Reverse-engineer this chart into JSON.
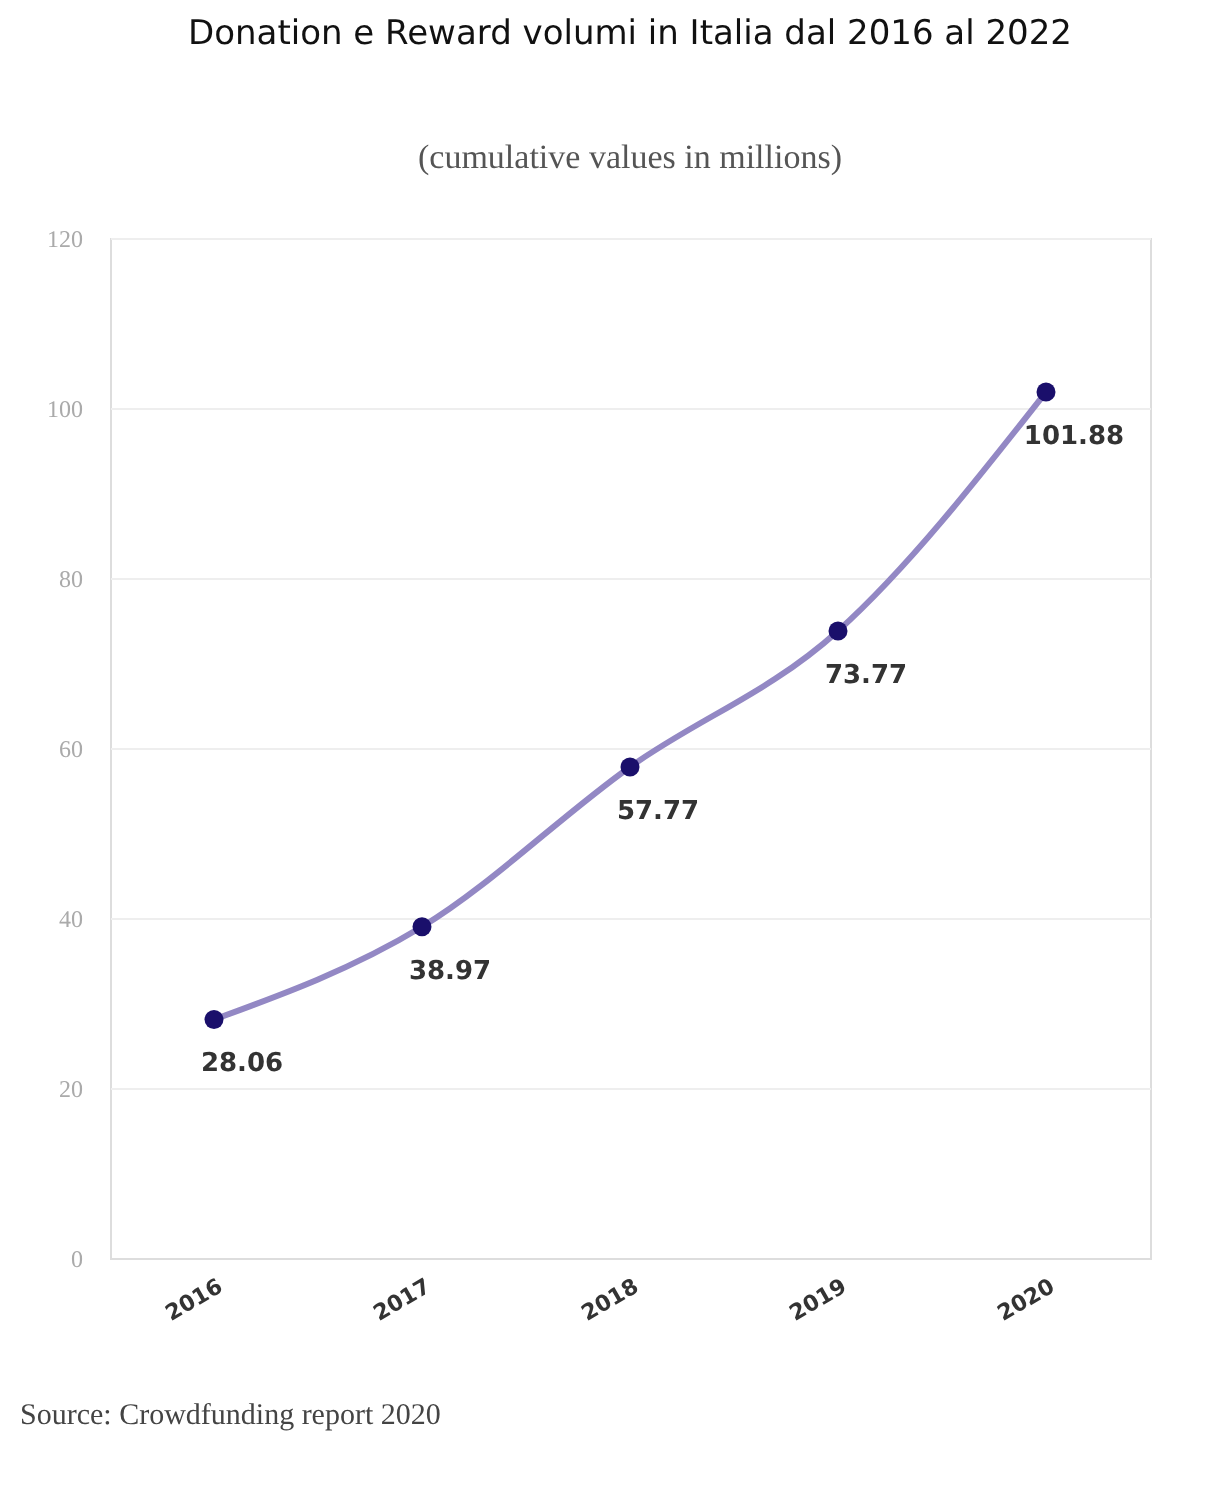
{
  "chart_data": {
    "type": "line",
    "title": "Donation e Reward volumi in Italia dal 2016 al 2022",
    "subtitle": "(cumulative values in millions)",
    "categories": [
      "2016",
      "2017",
      "2018",
      "2019",
      "2020"
    ],
    "series": [
      {
        "color": "#9388c4",
        "values": [
          28.06,
          38.97,
          57.77,
          73.77,
          101.88
        ]
      }
    ],
    "ylim": [
      0,
      120
    ],
    "yticks": [
      0,
      20,
      40,
      60,
      80,
      100,
      120
    ],
    "grid": "y",
    "marker": "circle",
    "line_style": "solid",
    "data_labels": true,
    "annotations": [
      "Source: Crowdfunding report 2020"
    ]
  }
}
